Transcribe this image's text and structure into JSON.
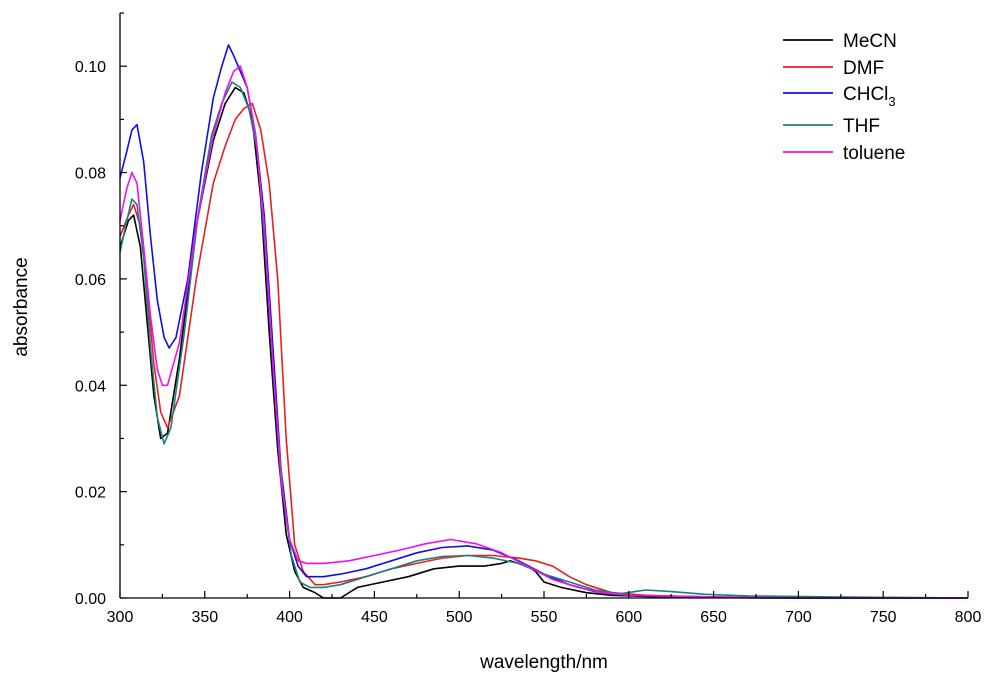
{
  "chart_data": {
    "type": "line",
    "title": "",
    "xlabel": "wavelength/nm",
    "ylabel": "absorbance",
    "xlim": [
      300,
      800
    ],
    "ylim": [
      0,
      0.11
    ],
    "x_ticks": [
      "300",
      "350",
      "400",
      "450",
      "500",
      "550",
      "600",
      "650",
      "700",
      "750",
      "800"
    ],
    "y_ticks": [
      "0.00",
      "0.02",
      "0.04",
      "0.06",
      "0.08",
      "0.10"
    ],
    "x_tick_values": [
      300,
      350,
      400,
      450,
      500,
      550,
      600,
      650,
      700,
      750,
      800
    ],
    "y_tick_values": [
      0,
      0.02,
      0.04,
      0.06,
      0.08,
      0.1
    ],
    "grid": false,
    "legend_position": "top-right",
    "series": [
      {
        "name": "MeCN",
        "color": "#000000",
        "points": [
          [
            300,
            0.066
          ],
          [
            305,
            0.071
          ],
          [
            308,
            0.072
          ],
          [
            312,
            0.066
          ],
          [
            316,
            0.052
          ],
          [
            320,
            0.038
          ],
          [
            324,
            0.03
          ],
          [
            328,
            0.031
          ],
          [
            335,
            0.045
          ],
          [
            345,
            0.07
          ],
          [
            355,
            0.086
          ],
          [
            362,
            0.093
          ],
          [
            368,
            0.096
          ],
          [
            373,
            0.095
          ],
          [
            378,
            0.09
          ],
          [
            383,
            0.075
          ],
          [
            388,
            0.05
          ],
          [
            393,
            0.028
          ],
          [
            398,
            0.012
          ],
          [
            403,
            0.005
          ],
          [
            408,
            0.002
          ],
          [
            415,
            0.001
          ],
          [
            420,
            0.0
          ],
          [
            430,
            0.0
          ],
          [
            440,
            0.002
          ],
          [
            455,
            0.003
          ],
          [
            470,
            0.004
          ],
          [
            485,
            0.0055
          ],
          [
            500,
            0.006
          ],
          [
            515,
            0.006
          ],
          [
            525,
            0.0065
          ],
          [
            530,
            0.007
          ],
          [
            540,
            0.006
          ],
          [
            545,
            0.005
          ],
          [
            550,
            0.003
          ],
          [
            560,
            0.002
          ],
          [
            575,
            0.001
          ],
          [
            590,
            0.0005
          ],
          [
            620,
            0.0002
          ],
          [
            680,
            0.0
          ],
          [
            800,
            0.0
          ]
        ]
      },
      {
        "name": "DMF",
        "color": "#e8201e",
        "points": [
          [
            300,
            0.068
          ],
          [
            305,
            0.072
          ],
          [
            308,
            0.074
          ],
          [
            312,
            0.07
          ],
          [
            316,
            0.058
          ],
          [
            320,
            0.044
          ],
          [
            324,
            0.035
          ],
          [
            328,
            0.032
          ],
          [
            335,
            0.038
          ],
          [
            345,
            0.06
          ],
          [
            355,
            0.078
          ],
          [
            362,
            0.085
          ],
          [
            368,
            0.09
          ],
          [
            373,
            0.092
          ],
          [
            378,
            0.093
          ],
          [
            383,
            0.088
          ],
          [
            388,
            0.078
          ],
          [
            393,
            0.06
          ],
          [
            398,
            0.03
          ],
          [
            403,
            0.01
          ],
          [
            408,
            0.005
          ],
          [
            415,
            0.0025
          ],
          [
            420,
            0.0025
          ],
          [
            430,
            0.003
          ],
          [
            445,
            0.004
          ],
          [
            460,
            0.0055
          ],
          [
            475,
            0.0065
          ],
          [
            490,
            0.0075
          ],
          [
            505,
            0.008
          ],
          [
            520,
            0.008
          ],
          [
            535,
            0.0075
          ],
          [
            545,
            0.007
          ],
          [
            555,
            0.006
          ],
          [
            565,
            0.004
          ],
          [
            575,
            0.0025
          ],
          [
            590,
            0.001
          ],
          [
            610,
            0.0005
          ],
          [
            640,
            0.0002
          ],
          [
            700,
            0.0
          ],
          [
            800,
            0.0
          ]
        ]
      },
      {
        "name": "CHCl3",
        "legend_label": "CHCl",
        "legend_sub": "3",
        "color": "#1010d8",
        "points": [
          [
            300,
            0.079
          ],
          [
            304,
            0.084
          ],
          [
            307,
            0.088
          ],
          [
            310,
            0.089
          ],
          [
            314,
            0.082
          ],
          [
            318,
            0.068
          ],
          [
            322,
            0.056
          ],
          [
            326,
            0.049
          ],
          [
            329,
            0.047
          ],
          [
            333,
            0.049
          ],
          [
            340,
            0.06
          ],
          [
            348,
            0.08
          ],
          [
            355,
            0.094
          ],
          [
            360,
            0.1
          ],
          [
            364,
            0.104
          ],
          [
            367,
            0.102
          ],
          [
            371,
            0.099
          ],
          [
            375,
            0.096
          ],
          [
            380,
            0.087
          ],
          [
            385,
            0.072
          ],
          [
            390,
            0.048
          ],
          [
            395,
            0.024
          ],
          [
            400,
            0.011
          ],
          [
            405,
            0.006
          ],
          [
            410,
            0.004
          ],
          [
            415,
            0.004
          ],
          [
            420,
            0.004
          ],
          [
            430,
            0.0045
          ],
          [
            445,
            0.0055
          ],
          [
            460,
            0.007
          ],
          [
            475,
            0.0085
          ],
          [
            490,
            0.0095
          ],
          [
            505,
            0.0098
          ],
          [
            520,
            0.009
          ],
          [
            535,
            0.007
          ],
          [
            550,
            0.0045
          ],
          [
            565,
            0.0025
          ],
          [
            580,
            0.0012
          ],
          [
            600,
            0.0005
          ],
          [
            650,
            0.0002
          ],
          [
            700,
            0.0
          ],
          [
            800,
            0.0
          ]
        ]
      },
      {
        "name": "THF",
        "color": "#1a8080",
        "points": [
          [
            300,
            0.065
          ],
          [
            304,
            0.071
          ],
          [
            307,
            0.075
          ],
          [
            310,
            0.074
          ],
          [
            314,
            0.064
          ],
          [
            318,
            0.047
          ],
          [
            322,
            0.034
          ],
          [
            326,
            0.029
          ],
          [
            330,
            0.032
          ],
          [
            338,
            0.05
          ],
          [
            346,
            0.072
          ],
          [
            354,
            0.087
          ],
          [
            360,
            0.093
          ],
          [
            366,
            0.097
          ],
          [
            371,
            0.096
          ],
          [
            376,
            0.092
          ],
          [
            381,
            0.084
          ],
          [
            386,
            0.064
          ],
          [
            391,
            0.04
          ],
          [
            396,
            0.02
          ],
          [
            401,
            0.008
          ],
          [
            406,
            0.003
          ],
          [
            412,
            0.002
          ],
          [
            420,
            0.002
          ],
          [
            430,
            0.0025
          ],
          [
            445,
            0.004
          ],
          [
            460,
            0.0055
          ],
          [
            475,
            0.007
          ],
          [
            490,
            0.0078
          ],
          [
            505,
            0.008
          ],
          [
            520,
            0.0075
          ],
          [
            535,
            0.0065
          ],
          [
            550,
            0.0045
          ],
          [
            565,
            0.003
          ],
          [
            580,
            0.0015
          ],
          [
            595,
            0.0008
          ],
          [
            610,
            0.0015
          ],
          [
            625,
            0.0012
          ],
          [
            645,
            0.0007
          ],
          [
            670,
            0.0004
          ],
          [
            720,
            0.0002
          ],
          [
            800,
            0.0
          ]
        ]
      },
      {
        "name": "toluene",
        "color": "#ee10ee",
        "points": [
          [
            300,
            0.071
          ],
          [
            304,
            0.077
          ],
          [
            307,
            0.08
          ],
          [
            310,
            0.078
          ],
          [
            314,
            0.066
          ],
          [
            318,
            0.053
          ],
          [
            322,
            0.043
          ],
          [
            325,
            0.04
          ],
          [
            328,
            0.04
          ],
          [
            335,
            0.048
          ],
          [
            345,
            0.07
          ],
          [
            355,
            0.087
          ],
          [
            362,
            0.095
          ],
          [
            367,
            0.099
          ],
          [
            371,
            0.1
          ],
          [
            375,
            0.096
          ],
          [
            380,
            0.087
          ],
          [
            385,
            0.07
          ],
          [
            390,
            0.045
          ],
          [
            395,
            0.022
          ],
          [
            400,
            0.011
          ],
          [
            405,
            0.007
          ],
          [
            410,
            0.0065
          ],
          [
            420,
            0.0065
          ],
          [
            435,
            0.007
          ],
          [
            450,
            0.008
          ],
          [
            465,
            0.009
          ],
          [
            480,
            0.0102
          ],
          [
            495,
            0.011
          ],
          [
            510,
            0.0102
          ],
          [
            525,
            0.0085
          ],
          [
            540,
            0.006
          ],
          [
            555,
            0.0035
          ],
          [
            570,
            0.002
          ],
          [
            585,
            0.001
          ],
          [
            600,
            0.0005
          ],
          [
            650,
            0.0002
          ],
          [
            700,
            0.0
          ],
          [
            800,
            0.0
          ]
        ]
      }
    ]
  }
}
